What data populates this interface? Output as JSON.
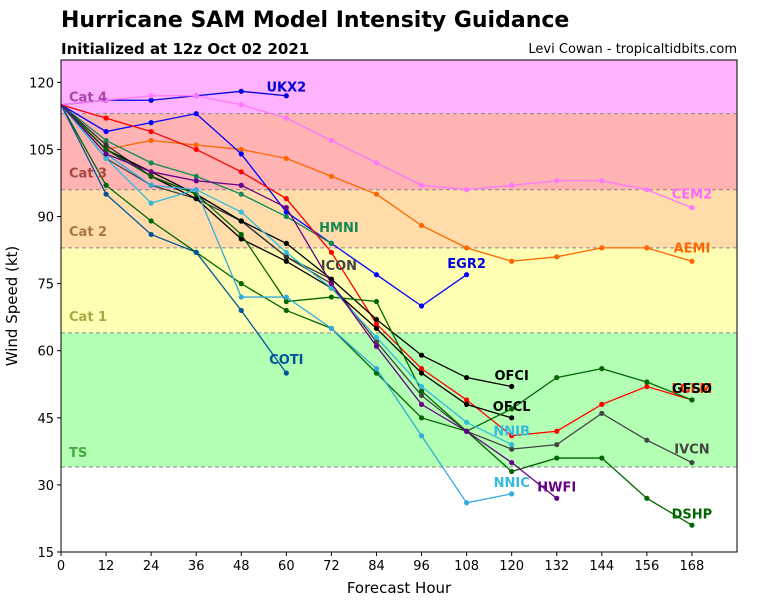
{
  "header": {
    "title": "Hurricane SAM Model Intensity Guidance",
    "subtitle": "Initialized at 12z Oct 02 2021",
    "credit": "Levi Cowan - tropicaltidbits.com"
  },
  "chart_data": {
    "type": "line",
    "xlabel": "Forecast Hour",
    "ylabel": "Wind Speed (kt)",
    "xlim": [
      0,
      180
    ],
    "ylim": [
      15,
      125
    ],
    "xticks": [
      0,
      12,
      24,
      36,
      48,
      60,
      72,
      84,
      96,
      108,
      120,
      132,
      144,
      156,
      168
    ],
    "yticks": [
      15,
      30,
      45,
      60,
      75,
      90,
      105,
      120
    ],
    "categories": [
      {
        "name": "TS",
        "min": 34,
        "max": 64,
        "color": "#b3ffb3",
        "text_color": "#44aa44"
      },
      {
        "name": "Cat 1",
        "min": 64,
        "max": 83,
        "color": "#ffffb3",
        "text_color": "#aaaa44"
      },
      {
        "name": "Cat 2",
        "min": 83,
        "max": 96,
        "color": "#ffdcaa",
        "text_color": "#aa7744"
      },
      {
        "name": "Cat 3",
        "min": 96,
        "max": 113,
        "color": "#ffb3b3",
        "text_color": "#aa4444"
      },
      {
        "name": "Cat 4",
        "min": 113,
        "max": 125,
        "color": "#ffb3ff",
        "text_color": "#aa44aa"
      }
    ],
    "series": [
      {
        "name": "UKX2",
        "color": "#0000dd",
        "label_color": "#0000dd",
        "x": [
          0,
          12,
          24,
          36,
          48,
          60
        ],
        "y": [
          115,
          116,
          116,
          117,
          118,
          117
        ]
      },
      {
        "name": "CEM2",
        "color": "#ff77ff",
        "label_color": "#ff66ff",
        "x": [
          0,
          12,
          24,
          36,
          48,
          60,
          72,
          84,
          96,
          108,
          120,
          132,
          144,
          156,
          168
        ],
        "y": [
          115,
          116,
          117,
          117,
          115,
          112,
          107,
          102,
          97,
          96,
          97,
          98,
          98,
          96,
          92
        ]
      },
      {
        "name": "AEMI",
        "color": "#ff6600",
        "label_color": "#ff6600",
        "x": [
          0,
          12,
          24,
          36,
          48,
          60,
          72,
          84,
          96,
          108,
          120,
          132,
          144,
          156,
          168
        ],
        "y": [
          115,
          105,
          107,
          106,
          105,
          103,
          99,
          95,
          88,
          83,
          80,
          81,
          83,
          83,
          80
        ]
      },
      {
        "name": "EGR2",
        "color": "#0000ff",
        "label_color": "#0000dd",
        "x": [
          0,
          12,
          24,
          36,
          48,
          60,
          72,
          84,
          96,
          108
        ],
        "y": [
          115,
          109,
          111,
          113,
          104,
          91,
          84,
          77,
          70,
          77
        ]
      },
      {
        "name": "HMNI",
        "color": "#118855",
        "label_color": "#118855",
        "x": [
          0,
          12,
          24,
          36,
          48,
          60,
          72
        ],
        "y": [
          115,
          107,
          102,
          99,
          95,
          90,
          84
        ]
      },
      {
        "name": "LGEM",
        "color": "#ff0000",
        "label_color": "#ff2200",
        "x": [
          0,
          12,
          24,
          36,
          48,
          60,
          72,
          84,
          96,
          108,
          120,
          132,
          144,
          156,
          168
        ],
        "y": [
          115,
          112,
          109,
          105,
          100,
          94,
          82,
          66,
          56,
          49,
          41,
          42,
          48,
          52,
          49
        ]
      },
      {
        "name": "IVCN",
        "color": "#444444",
        "label_color": "#444444",
        "x": [
          0,
          12,
          24,
          36,
          48,
          60,
          72,
          84,
          96,
          108,
          120,
          132,
          144,
          156,
          168
        ],
        "y": [
          115,
          103,
          97,
          94,
          89,
          81,
          75,
          62,
          50,
          42,
          38,
          39,
          46,
          40,
          35
        ]
      },
      {
        "name": "ICON",
        "color": "#333333",
        "label_color": "#444444",
        "x": [
          0,
          12,
          24,
          36,
          48,
          60,
          72
        ],
        "y": [
          115,
          106,
          99,
          95,
          89,
          81,
          76
        ]
      },
      {
        "name": "OFCI",
        "color": "#000000",
        "label_color": "#000000",
        "x": [
          0,
          12,
          24,
          36,
          48,
          60,
          72,
          84,
          96,
          108,
          120
        ],
        "y": [
          115,
          105,
          100,
          95,
          89,
          84,
          76,
          67,
          59,
          54,
          52
        ]
      },
      {
        "name": "OFCL",
        "color": "#000000",
        "label_color": "#000000",
        "x": [
          0,
          12,
          24,
          36,
          48,
          60,
          72,
          84,
          96,
          108,
          120
        ],
        "y": [
          115,
          105,
          99,
          94,
          85,
          80,
          74,
          65,
          55,
          48,
          45
        ]
      },
      {
        "name": "GFSO",
        "color": "#006600",
        "label_color": "#000000",
        "x": [
          0,
          12,
          24,
          36,
          48,
          60,
          72,
          84,
          96,
          108,
          120,
          132,
          144,
          156,
          168
        ],
        "y": [
          115,
          97,
          89,
          82,
          75,
          69,
          65,
          55,
          45,
          42,
          47,
          54,
          56,
          53,
          49
        ]
      },
      {
        "name": "DSHP",
        "color": "#006600",
        "label_color": "#006600",
        "x": [
          0,
          12,
          24,
          36,
          48,
          60,
          72,
          84,
          96,
          108,
          120,
          132,
          144,
          156,
          168
        ],
        "y": [
          115,
          105,
          99,
          95,
          86,
          71,
          72,
          71,
          51,
          42,
          33,
          36,
          36,
          27,
          21
        ]
      },
      {
        "name": "COTI",
        "color": "#005599",
        "label_color": "#005599",
        "x": [
          0,
          12,
          24,
          36,
          48,
          60
        ],
        "y": [
          115,
          95,
          86,
          82,
          69,
          55
        ]
      },
      {
        "name": "NNIB",
        "color": "#33bbdd",
        "label_color": "#33bbdd",
        "x": [
          0,
          12,
          24,
          36,
          48,
          60,
          72,
          84,
          96,
          108,
          120
        ],
        "y": [
          115,
          103,
          93,
          96,
          91,
          82,
          74,
          63,
          52,
          44,
          39
        ]
      },
      {
        "name": "NNIC",
        "color": "#33aadd",
        "label_color": "#33bbdd",
        "x": [
          0,
          12,
          24,
          36,
          48,
          60,
          72,
          84,
          96,
          108,
          120
        ],
        "y": [
          115,
          104,
          97,
          96,
          72,
          72,
          65,
          56,
          41,
          26,
          28
        ]
      },
      {
        "name": "HWFI",
        "color": "#660088",
        "label_color": "#660088",
        "x": [
          0,
          12,
          24,
          36,
          48,
          60,
          72,
          84,
          96,
          108,
          120,
          132
        ],
        "y": [
          115,
          104,
          100,
          98,
          97,
          92,
          75,
          61,
          48,
          42,
          35,
          27
        ]
      }
    ],
    "labels": [
      {
        "text": "UKX2",
        "series": "UKX2",
        "x": 60,
        "y": 118
      },
      {
        "text": "CEM2",
        "series": "CEM2",
        "x": 168,
        "y": 94
      },
      {
        "text": "AEMI",
        "series": "AEMI",
        "x": 168,
        "y": 82
      },
      {
        "text": "EGR2",
        "series": "EGR2",
        "x": 108,
        "y": 78.5
      },
      {
        "text": "HMNI",
        "series": "HMNI",
        "x": 74,
        "y": 86.5
      },
      {
        "text": "LGEM",
        "series": "LGEM",
        "x": 168,
        "y": 50.5
      },
      {
        "text": "GFSO",
        "series": "GFSO",
        "x": 168,
        "y": 50.5
      },
      {
        "text": "IVCN",
        "series": "IVCN",
        "x": 168,
        "y": 37
      },
      {
        "text": "ICON",
        "series": "ICON",
        "x": 74,
        "y": 78
      },
      {
        "text": "OFCI",
        "series": "OFCI",
        "x": 120,
        "y": 53.5
      },
      {
        "text": "OFCL",
        "series": "OFCL",
        "x": 120,
        "y": 46.5
      },
      {
        "text": "DSHP",
        "series": "DSHP",
        "x": 168,
        "y": 22.5
      },
      {
        "text": "COTI",
        "series": "COTI",
        "x": 60,
        "y": 57
      },
      {
        "text": "NNIB",
        "series": "NNIB",
        "x": 120,
        "y": 41
      },
      {
        "text": "NNIC",
        "series": "NNIC",
        "x": 120,
        "y": 29.5
      },
      {
        "text": "HWFI",
        "series": "HWFI",
        "x": 132,
        "y": 28.5
      }
    ]
  }
}
